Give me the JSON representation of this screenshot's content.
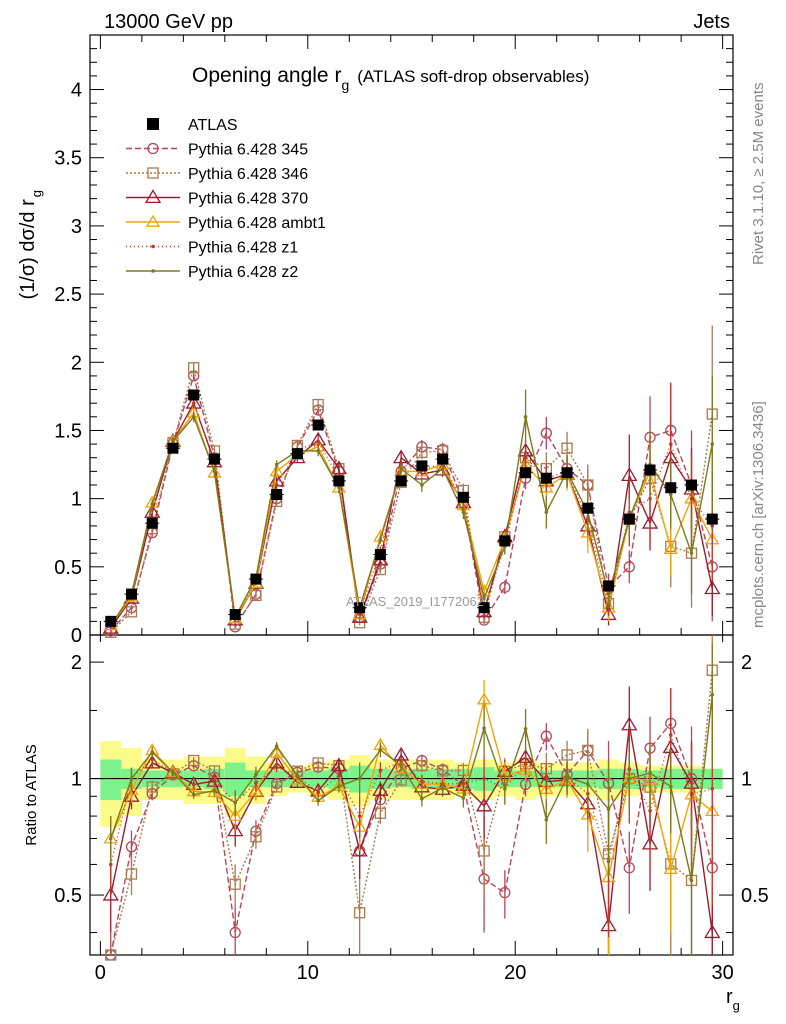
{
  "header": {
    "left": "13000 GeV pp",
    "right": "Jets"
  },
  "title": {
    "main": "Opening angle r",
    "sub": "g",
    "suffix": "(ATLAS soft-drop observables)"
  },
  "axes": {
    "ylabel_main": "(1/σ) dσ/d r",
    "ylabel_sub": "g",
    "ratio_ylabel": "Ratio to ATLAS",
    "xlabel": "r",
    "xlabel_sub": "g"
  },
  "watermark": "ATLAS_2019_I1772062",
  "side_right_1": "Rivet 3.1.10, ≥ 2.5M events",
  "side_right_2": "mcplots.cern.ch [arXiv:1306.3436]",
  "legend": [
    {
      "label": "ATLAS"
    },
    {
      "label": "Pythia 6.428 345"
    },
    {
      "label": "Pythia 6.428 346"
    },
    {
      "label": "Pythia 6.428 370"
    },
    {
      "label": "Pythia 6.428 ambt1"
    },
    {
      "label": "Pythia 6.428 z1"
    },
    {
      "label": "Pythia 6.428 z2"
    }
  ],
  "chart_data": {
    "type": "line",
    "xlim": [
      -0.5,
      30.5
    ],
    "ylim": [
      0,
      4.4
    ],
    "ratio_ylim": [
      0.35,
      2.35
    ],
    "x_ticks": [
      0,
      10,
      20,
      30
    ],
    "y_ticks": [
      0,
      0.5,
      1,
      1.5,
      2,
      2.5,
      3,
      3.5,
      4
    ],
    "ratio_ticks": [
      0.5,
      1,
      2
    ],
    "x": [
      0.5,
      1.5,
      2.5,
      3.5,
      4.5,
      5.5,
      6.5,
      7.5,
      8.5,
      9.5,
      10.5,
      11.5,
      12.5,
      13.5,
      14.5,
      15.5,
      16.5,
      17.5,
      18.5,
      19.5,
      20.5,
      21.5,
      22.5,
      23.5,
      24.5,
      25.5,
      26.5,
      27.5,
      28.5,
      29.5
    ],
    "data": {
      "name": "ATLAS",
      "values": [
        0.1,
        0.3,
        0.82,
        1.37,
        1.76,
        1.29,
        0.15,
        0.41,
        1.03,
        1.33,
        1.54,
        1.13,
        0.2,
        0.59,
        1.13,
        1.24,
        1.29,
        1.01,
        0.2,
        0.69,
        1.19,
        1.15,
        1.19,
        0.93,
        0.36,
        0.85,
        1.21,
        1.08,
        1.1,
        0.85
      ],
      "band_inner": [
        0.12,
        0.06,
        0.05,
        0.05,
        0.05,
        0.06,
        0.1,
        0.05,
        0.05,
        0.05,
        0.05,
        0.06,
        0.08,
        0.06,
        0.05,
        0.06,
        0.06,
        0.06,
        0.07,
        0.05,
        0.05,
        0.05,
        0.05,
        0.05,
        0.06,
        0.06,
        0.05,
        0.06,
        0.06,
        0.06
      ],
      "band_outer": [
        0.25,
        0.2,
        0.12,
        0.12,
        0.14,
        0.14,
        0.2,
        0.14,
        0.1,
        0.08,
        0.1,
        0.12,
        0.15,
        0.12,
        0.12,
        0.12,
        0.12,
        0.1,
        0.12,
        0.1,
        0.12,
        0.1,
        0.1,
        0.1,
        0.12,
        0.1,
        0.08,
        0.08,
        0.08,
        0.06
      ]
    },
    "series": [
      {
        "name": "Pythia 6.428 345",
        "color": "#b5475a",
        "dash": "6,3",
        "marker": "circle",
        "values": [
          0.03,
          0.2,
          0.75,
          1.4,
          1.9,
          1.3,
          0.06,
          0.3,
          1.0,
          1.38,
          1.65,
          1.2,
          0.13,
          0.52,
          1.2,
          1.38,
          1.36,
          0.97,
          0.11,
          0.35,
          1.15,
          1.48,
          1.22,
          1.1,
          0.35,
          0.5,
          1.45,
          1.5,
          1.1,
          0.5
        ],
        "errors": [
          0.01,
          0.02,
          0.03,
          0.03,
          0.04,
          0.04,
          0.01,
          0.02,
          0.03,
          0.03,
          0.04,
          0.04,
          0.02,
          0.03,
          0.04,
          0.05,
          0.05,
          0.05,
          0.03,
          0.05,
          0.08,
          0.12,
          0.1,
          0.12,
          0.1,
          0.12,
          0.3,
          0.35,
          0.4,
          0.4
        ]
      },
      {
        "name": "Pythia 6.428 346",
        "color": "#a87b50",
        "dash": "2,2",
        "marker": "square",
        "values": [
          0.02,
          0.17,
          0.78,
          1.41,
          1.96,
          1.35,
          0.08,
          0.29,
          0.98,
          1.39,
          1.69,
          1.22,
          0.09,
          0.48,
          1.12,
          1.34,
          1.35,
          1.06,
          0.13,
          0.72,
          1.3,
          1.22,
          1.37,
          1.1,
          0.23,
          0.85,
          1.15,
          0.65,
          0.6,
          1.62
        ],
        "errors": [
          0.01,
          0.02,
          0.03,
          0.03,
          0.04,
          0.04,
          0.01,
          0.02,
          0.03,
          0.03,
          0.04,
          0.04,
          0.02,
          0.03,
          0.04,
          0.05,
          0.05,
          0.05,
          0.03,
          0.06,
          0.1,
          0.12,
          0.12,
          0.15,
          0.12,
          0.15,
          0.25,
          0.3,
          0.4,
          0.65
        ]
      },
      {
        "name": "Pythia 6.428 370",
        "color": "#9a1c2e",
        "dash": "",
        "marker": "triangle",
        "values": [
          0.05,
          0.27,
          0.9,
          1.42,
          1.7,
          1.27,
          0.11,
          0.38,
          1.13,
          1.3,
          1.43,
          1.22,
          0.13,
          0.55,
          1.3,
          1.18,
          1.21,
          0.97,
          0.17,
          0.72,
          1.35,
          1.13,
          1.18,
          0.8,
          0.15,
          1.17,
          0.82,
          1.3,
          1.07,
          0.34
        ],
        "errors": [
          0.01,
          0.02,
          0.03,
          0.03,
          0.04,
          0.04,
          0.01,
          0.02,
          0.03,
          0.03,
          0.04,
          0.04,
          0.02,
          0.03,
          0.04,
          0.05,
          0.05,
          0.05,
          0.03,
          0.05,
          0.08,
          0.1,
          0.1,
          0.12,
          0.08,
          0.3,
          0.2,
          0.3,
          0.3,
          0.2
        ]
      },
      {
        "name": "Pythia 6.428 ambt1",
        "color": "#f0a30a",
        "dash": "",
        "marker": "triangle-open",
        "values": [
          0.07,
          0.28,
          0.97,
          1.42,
          1.63,
          1.19,
          0.12,
          0.38,
          1.2,
          1.32,
          1.38,
          1.08,
          0.15,
          0.72,
          1.2,
          1.2,
          1.25,
          0.95,
          0.32,
          0.7,
          1.25,
          1.08,
          1.18,
          0.75,
          0.2,
          0.85,
          1.2,
          0.63,
          1.0,
          0.7
        ],
        "errors": [
          0.01,
          0.02,
          0.03,
          0.03,
          0.04,
          0.04,
          0.01,
          0.02,
          0.03,
          0.03,
          0.04,
          0.04,
          0.02,
          0.03,
          0.04,
          0.05,
          0.05,
          0.05,
          0.04,
          0.06,
          0.1,
          0.12,
          0.12,
          0.15,
          0.1,
          0.15,
          0.25,
          0.2,
          0.25,
          0.3
        ]
      },
      {
        "name": "Pythia 6.428 z1",
        "color": "#c0392b",
        "dash": "1,3",
        "marker": "dot",
        "values": [
          0.06,
          0.3,
          0.92,
          1.42,
          1.7,
          1.28,
          0.13,
          0.4,
          1.1,
          1.35,
          1.42,
          1.15,
          0.16,
          0.62,
          1.25,
          1.22,
          1.25,
          0.98,
          0.2,
          0.65,
          1.3,
          1.15,
          1.2,
          0.85,
          0.22,
          0.9,
          1.0,
          1.4,
          1.0,
          0.8
        ],
        "errors": [
          0.01,
          0.02,
          0.03,
          0.03,
          0.04,
          0.04,
          0.01,
          0.02,
          0.03,
          0.03,
          0.04,
          0.04,
          0.02,
          0.03,
          0.04,
          0.05,
          0.05,
          0.05,
          0.03,
          0.05,
          0.08,
          0.1,
          0.1,
          0.12,
          0.08,
          0.25,
          0.3,
          0.45,
          0.35,
          0.4
        ]
      },
      {
        "name": "Pythia 6.428 z2",
        "color": "#7d7a1d",
        "dash": "",
        "marker": "dot",
        "values": [
          0.07,
          0.3,
          0.96,
          1.42,
          1.6,
          1.2,
          0.13,
          0.42,
          1.25,
          1.35,
          1.35,
          1.08,
          0.2,
          0.7,
          1.22,
          1.1,
          1.22,
          0.9,
          0.27,
          0.65,
          1.6,
          0.9,
          1.2,
          0.9,
          0.3,
          0.85,
          1.25,
          1.03,
          0.6,
          1.4
        ],
        "errors": [
          0.01,
          0.02,
          0.03,
          0.03,
          0.04,
          0.04,
          0.01,
          0.02,
          0.03,
          0.03,
          0.04,
          0.04,
          0.02,
          0.03,
          0.04,
          0.05,
          0.05,
          0.05,
          0.04,
          0.06,
          0.2,
          0.12,
          0.12,
          0.15,
          0.1,
          0.15,
          0.25,
          0.25,
          0.3,
          0.5
        ]
      }
    ]
  }
}
